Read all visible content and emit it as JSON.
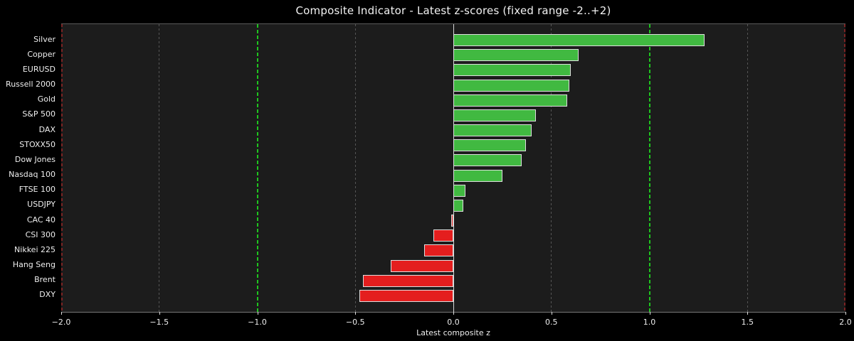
{
  "chart_data": {
    "type": "bar",
    "orientation": "horizontal",
    "title": "Composite Indicator - Latest z-scores (fixed range -2..+2)",
    "xlabel": "Latest composite z",
    "ylabel": "",
    "categories": [
      "Silver",
      "Copper",
      "EURUSD",
      "Russell 2000",
      "Gold",
      "S&P 500",
      "DAX",
      "STOXX50",
      "Dow Jones",
      "Nasdaq 100",
      "FTSE 100",
      "USDJPY",
      "CAC 40",
      "CSI 300",
      "Nikkei 225",
      "Hang Seng",
      "Brent",
      "DXY"
    ],
    "values": [
      1.28,
      0.64,
      0.6,
      0.59,
      0.58,
      0.42,
      0.4,
      0.37,
      0.35,
      0.25,
      0.06,
      0.05,
      -0.01,
      -0.1,
      -0.15,
      -0.32,
      -0.46,
      -0.48
    ],
    "xlim": [
      -2.0,
      2.0
    ],
    "xticks": [
      -2.0,
      -1.5,
      -1.0,
      -0.5,
      0.0,
      0.5,
      1.0,
      1.5,
      2.0
    ],
    "xtick_labels": [
      "−2.0",
      "−1.5",
      "−1.0",
      "−0.5",
      "0.0",
      "0.5",
      "1.0",
      "1.5",
      "2.0"
    ],
    "gridlines_x": [
      -1.5,
      -0.5,
      0.5,
      1.5
    ],
    "reference_lines": [
      {
        "x": -2.0,
        "style": "dashed",
        "color": "#7c2424",
        "meaning": "fixed-range-lower"
      },
      {
        "x": -1.0,
        "style": "dashed",
        "color": "#1ec41e",
        "meaning": "lower-threshold"
      },
      {
        "x": 0.0,
        "style": "solid",
        "color": "#d8d8d8",
        "meaning": "zero-line"
      },
      {
        "x": 1.0,
        "style": "dashed",
        "color": "#1ec41e",
        "meaning": "upper-threshold"
      },
      {
        "x": 2.0,
        "style": "dashed",
        "color": "#7c2424",
        "meaning": "fixed-range-upper"
      }
    ],
    "colors": {
      "background": "#000000",
      "plot_background": "#1c1c1c",
      "positive_bar": "#41b941",
      "negative_bar": "#e41e1e",
      "bar_edge": "#dedede",
      "grid": "#555555",
      "text": "#eeeeee"
    },
    "legend": null,
    "grid": "vertical dashed"
  }
}
